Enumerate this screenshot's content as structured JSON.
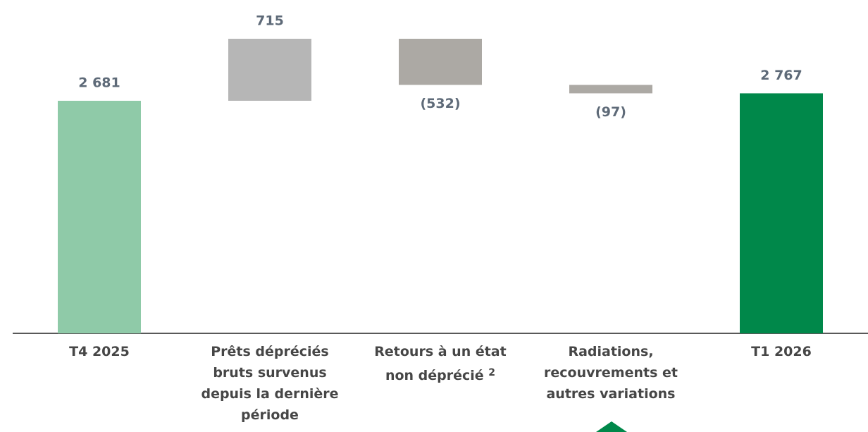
{
  "chart_data": {
    "type": "waterfall",
    "categories": [
      "T4 2025",
      "Prêts dépréciés bruts survenus depuis la dernière période",
      "Retours à un état non déprécié",
      "Radiations, recouvrements et autres variations",
      "T1 2026"
    ],
    "footnote_marks": [
      null,
      null,
      "2",
      null,
      null
    ],
    "values": [
      2681,
      715,
      -532,
      -97,
      2767
    ],
    "value_labels": [
      "2 681",
      "715",
      "(532)",
      "(97)",
      "2 767"
    ],
    "colors": [
      "#8fcaa8",
      "#b6b6b6",
      "#aca9a4",
      "#aca9a4",
      "#00884a"
    ]
  }
}
